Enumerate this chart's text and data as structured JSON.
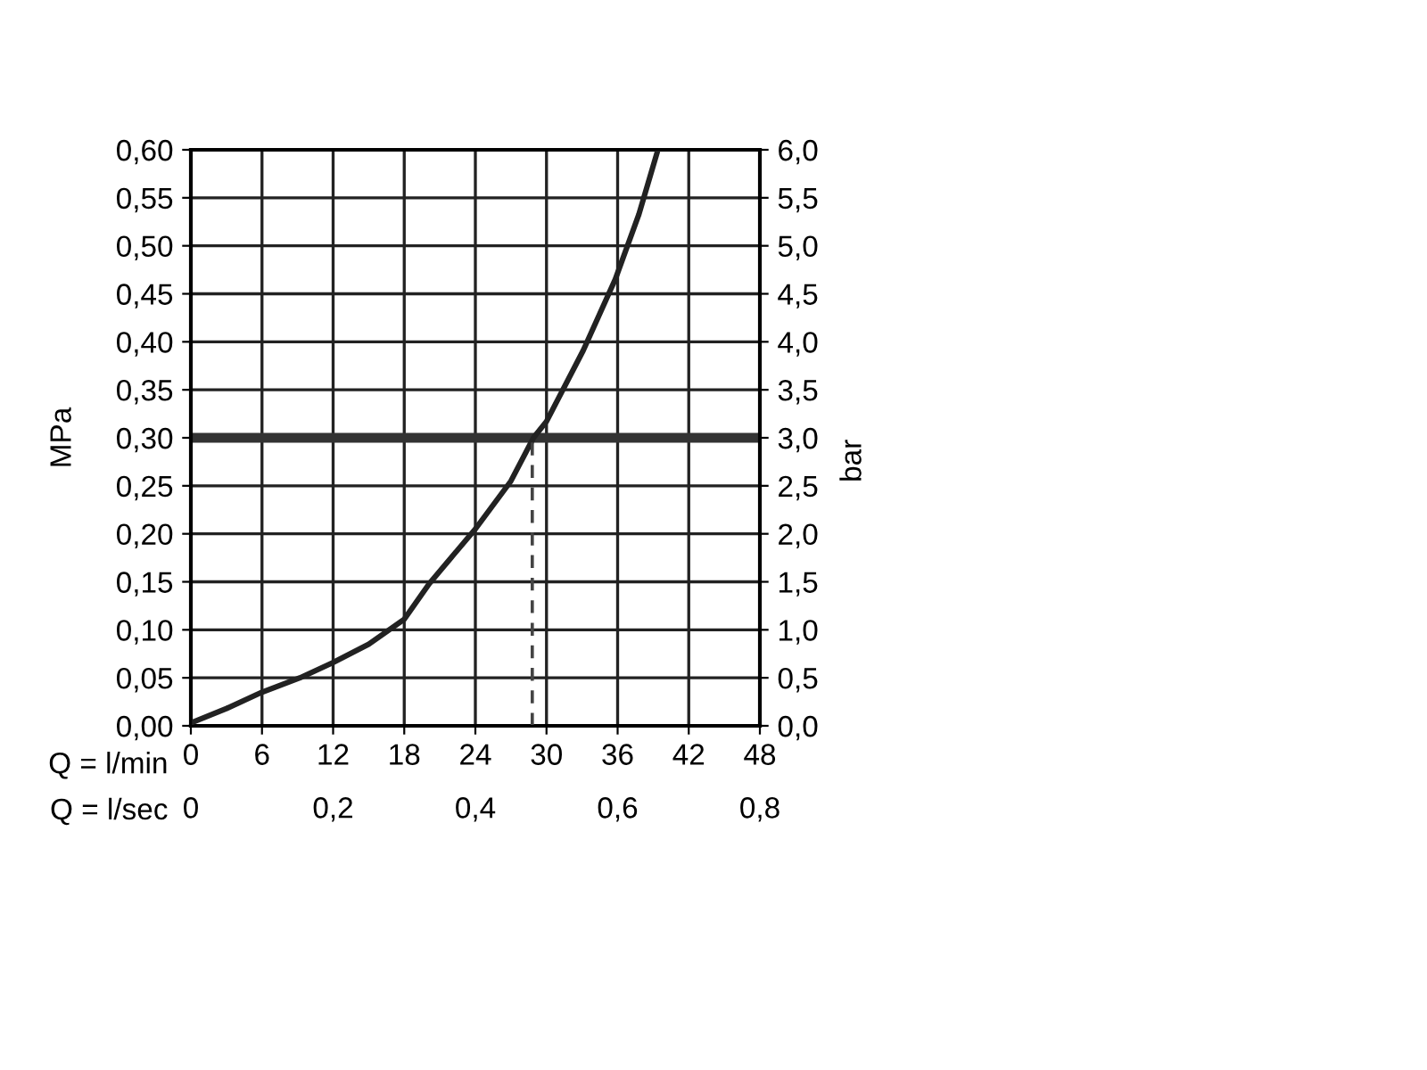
{
  "chart_data": {
    "type": "line",
    "xlabel": "Q = l/min",
    "x2label": "Q = l/sec",
    "ylabel": "MPa",
    "y2label": "bar",
    "series": [
      {
        "color": "#222222",
        "line_style": "solid",
        "x": [
          0,
          3,
          6,
          9.2,
          12,
          15,
          18,
          20.1,
          24,
          27,
          28.9,
          30,
          33.1,
          35.8,
          37.8,
          39.4
        ],
        "values": [
          0.003,
          0.018,
          0.035,
          0.05,
          0.066,
          0.085,
          0.111,
          0.148,
          0.205,
          0.255,
          0.3,
          0.317,
          0.391,
          0.465,
          0.533,
          0.6
        ]
      },
      {
        "color": "#444444",
        "line_style": "dashed",
        "x": [
          28.8,
          28.8
        ],
        "values": [
          0,
          0.3
        ]
      }
    ],
    "ref_lines": [
      {
        "axis": "y",
        "value": 0.3,
        "color": "#333333"
      }
    ],
    "xlim": [
      0,
      48
    ],
    "xticks": [
      0,
      6,
      12,
      18,
      24,
      30,
      36,
      42,
      48
    ],
    "x2lim": [
      0,
      0.8
    ],
    "x2ticks": [
      0,
      {
        "value": 0.2,
        "label": "0,2"
      },
      {
        "value": 0.4,
        "label": "0,4"
      },
      {
        "value": 0.6,
        "label": "0,6"
      },
      {
        "value": 0.8,
        "label": "0,8"
      }
    ],
    "ylim": [
      0,
      0.6
    ],
    "yticks": [
      {
        "value": 0,
        "label": "0,00"
      },
      {
        "value": 0.05,
        "label": "0,05"
      },
      {
        "value": 0.1,
        "label": "0,10"
      },
      {
        "value": 0.15,
        "label": "0,15"
      },
      {
        "value": 0.2,
        "label": "0,20"
      },
      {
        "value": 0.25,
        "label": "0,25"
      },
      {
        "value": 0.3,
        "label": "0,30"
      },
      {
        "value": 0.35,
        "label": "0,35"
      },
      {
        "value": 0.4,
        "label": "0,40"
      },
      {
        "value": 0.45,
        "label": "0,45"
      },
      {
        "value": 0.5,
        "label": "0,50"
      },
      {
        "value": 0.55,
        "label": "0,55"
      },
      {
        "value": 0.6,
        "label": "0,60"
      }
    ],
    "y2lim": [
      0,
      6
    ],
    "y2ticks": [
      {
        "value": 0,
        "label": "0,0"
      },
      {
        "value": 0.5,
        "label": "0,5"
      },
      {
        "value": 1,
        "label": "1,0"
      },
      {
        "value": 1.5,
        "label": "1,5"
      },
      {
        "value": 2,
        "label": "2,0"
      },
      {
        "value": 2.5,
        "label": "2,5"
      },
      {
        "value": 3,
        "label": "3,0"
      },
      {
        "value": 3.5,
        "label": "3,5"
      },
      {
        "value": 4,
        "label": "4,0"
      },
      {
        "value": 4.5,
        "label": "4,5"
      },
      {
        "value": 5,
        "label": "5,0"
      },
      {
        "value": 5.5,
        "label": "5,5"
      },
      {
        "value": 6,
        "label": "6,0"
      }
    ],
    "grid": true,
    "marker": "none"
  }
}
